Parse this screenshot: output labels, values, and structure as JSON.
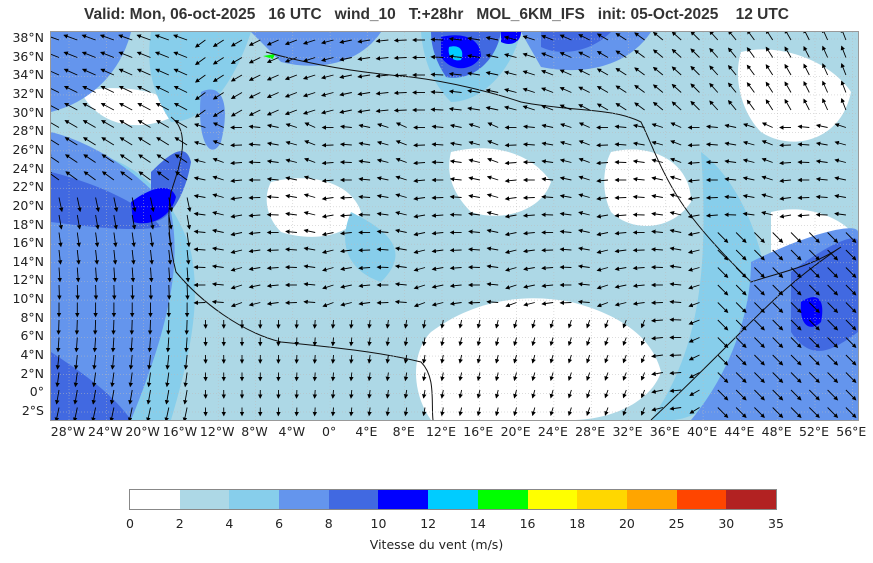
{
  "title": "Valid: Mon, 06-oct-2025   16 UTC   wind_10   T:+28hr   MOL_6KM_IFS   init: 05-Oct-2025    12 UTC",
  "map": {
    "lat_labels": [
      "38°N",
      "36°N",
      "34°N",
      "32°N",
      "30°N",
      "28°N",
      "26°N",
      "24°N",
      "22°N",
      "20°N",
      "18°N",
      "16°N",
      "14°N",
      "12°N",
      "10°N",
      "8°N",
      "6°N",
      "4°N",
      "2°N",
      "0°",
      "2°S"
    ],
    "lon_labels": [
      "28°W",
      "24°W",
      "20°W",
      "16°W",
      "12°W",
      "8°W",
      "4°W",
      "0°",
      "4°E",
      "8°E",
      "12°E",
      "16°E",
      "20°E",
      "24°E",
      "28°E",
      "32°E",
      "36°E",
      "40°E",
      "44°E",
      "48°E",
      "52°E",
      "56°E"
    ]
  },
  "colorbar": {
    "ticks": [
      "0",
      "2",
      "4",
      "6",
      "8",
      "10",
      "12",
      "14",
      "16",
      "18",
      "20",
      "25",
      "30",
      "35"
    ],
    "colors": [
      "#ffffff",
      "#add8e6",
      "#87ceeb",
      "#6495ed",
      "#4169e1",
      "#0000ff",
      "#00ccff",
      "#00ff00",
      "#ffff00",
      "#ffd700",
      "#ffa500",
      "#ff4500",
      "#b22222"
    ],
    "label": "Vitesse du vent (m/s)"
  }
}
